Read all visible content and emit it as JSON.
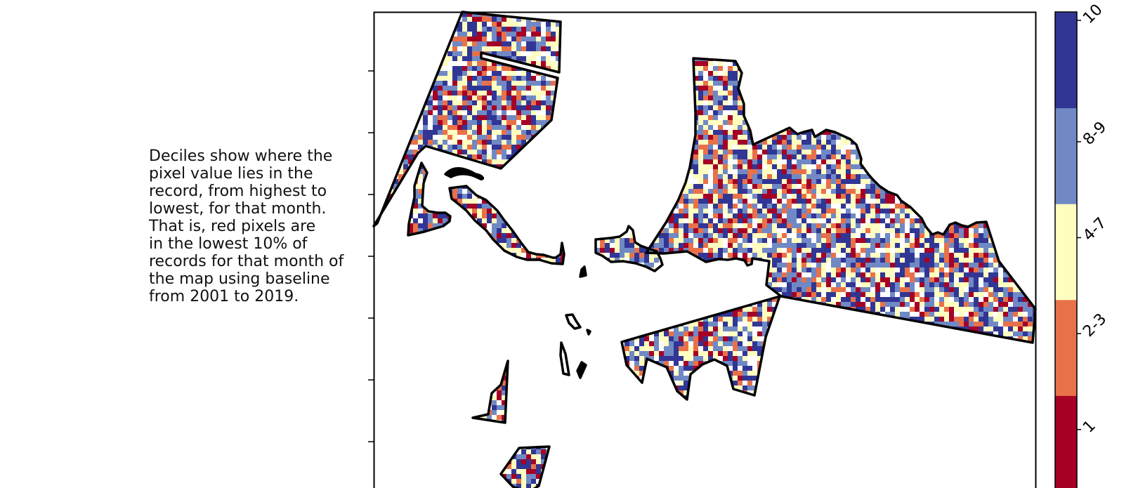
{
  "caption": {
    "lines": [
      "Deciles show where the",
      "pixel value lies in the",
      "record, from highest to",
      "lowest, for that month.",
      "That is, red pixels are",
      "in the lowest 10% of",
      "records for that month of",
      "the map using baseline",
      "from 2001 to 2019."
    ]
  },
  "chart_data": {
    "type": "heatmap",
    "title": "",
    "xlabel": "",
    "ylabel": "",
    "legend_placement": "right",
    "colorbar": {
      "categories": [
        {
          "label": "1",
          "color": "#a50026"
        },
        {
          "label": "2-3",
          "color": "#e8714a"
        },
        {
          "label": "4-7",
          "color": "#fefec0"
        },
        {
          "label": "8-9",
          "color": "#7089c5"
        },
        {
          "label": "10",
          "color": "#313695"
        }
      ],
      "tick_label_rotation_deg": -45
    },
    "cell_value_shares": {
      "1": 0.12,
      "2-3": 0.13,
      "4-7": 0.22,
      "8-9": 0.2,
      "10": 0.22,
      "no_data": 0.11
    },
    "y_ticks_count": 7,
    "grid": false
  }
}
